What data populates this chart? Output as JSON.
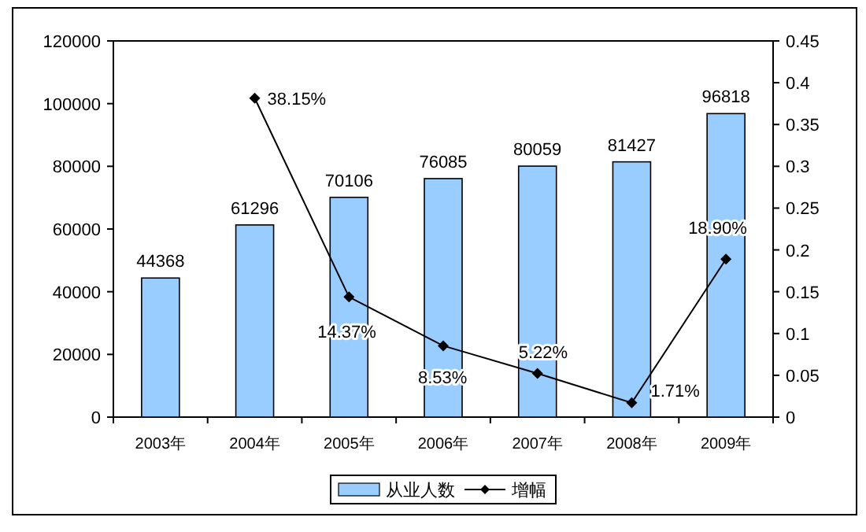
{
  "chart_data": {
    "type": "bar",
    "categories": [
      "2003年",
      "2004年",
      "2005年",
      "2006年",
      "2007年",
      "2008年",
      "2009年"
    ],
    "series": [
      {
        "name": "从业人数",
        "color": "#99ccff",
        "values": [
          44368,
          61296,
          70106,
          76085,
          80059,
          81427,
          96818
        ],
        "value_labels": [
          "44368",
          "61296",
          "70106",
          "76085",
          "80059",
          "81427",
          "96818"
        ]
      },
      {
        "name": "增幅",
        "type": "line",
        "axis": "y2",
        "color": "#000000",
        "marker": "diamond",
        "values": [
          null,
          0.3815,
          0.1437,
          0.0853,
          0.0522,
          0.0171,
          0.189
        ],
        "value_labels": [
          null,
          "38.15%",
          "14.37%",
          "8.53%",
          "5.22%",
          "1.71%",
          "18.90%"
        ]
      }
    ],
    "ylim": [
      0,
      120000
    ],
    "yticks": [
      0,
      20000,
      40000,
      60000,
      80000,
      100000,
      120000
    ],
    "y2lim": [
      0,
      0.45
    ],
    "y2ticks": [
      0,
      0.05,
      0.1,
      0.15,
      0.2,
      0.25,
      0.3,
      0.35,
      0.4,
      0.45
    ],
    "grid": false,
    "legend": "bottom"
  }
}
